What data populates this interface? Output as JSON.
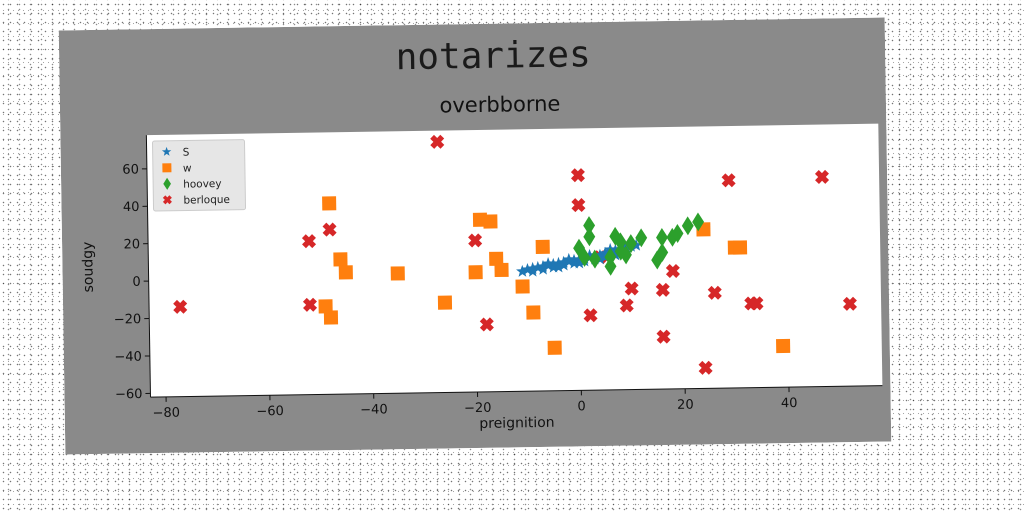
{
  "figure": {
    "suptitle": "notarizes",
    "background": "#8a8a8a"
  },
  "chart_data": {
    "type": "scatter",
    "title": "overbborne",
    "xlabel": "preignition",
    "ylabel": "soudgy",
    "xlim": [
      -83,
      58
    ],
    "ylim": [
      -62,
      78
    ],
    "xticks": [
      -80,
      -60,
      -40,
      -20,
      0,
      20,
      40
    ],
    "yticks": [
      -60,
      -40,
      -20,
      0,
      20,
      40,
      60
    ],
    "grid": false,
    "legend_position": "top-left",
    "series": [
      {
        "name": "S",
        "marker": "star",
        "color": "#1f77b4",
        "points": [
          [
            -11,
            2
          ],
          [
            -10,
            3
          ],
          [
            -9,
            3.5
          ],
          [
            -8,
            4
          ],
          [
            -7,
            4.5
          ],
          [
            -6,
            5
          ],
          [
            -5,
            5.5
          ],
          [
            -4,
            6
          ],
          [
            -3,
            6.5
          ],
          [
            -2,
            7
          ],
          [
            -1,
            7.5
          ],
          [
            0,
            8
          ],
          [
            1,
            8.5
          ],
          [
            2,
            9
          ],
          [
            3,
            9.5
          ],
          [
            4,
            10
          ],
          [
            5,
            11
          ],
          [
            6,
            12
          ],
          [
            7,
            12.5
          ],
          [
            8,
            13
          ],
          [
            9,
            14
          ],
          [
            10,
            14.5
          ],
          [
            11,
            15
          ],
          [
            -9,
            2
          ],
          [
            -7,
            3
          ],
          [
            -5,
            4
          ],
          [
            -3,
            5
          ],
          [
            -1,
            6
          ],
          [
            1,
            7
          ],
          [
            3,
            8
          ],
          [
            5,
            9
          ],
          [
            7,
            10
          ],
          [
            9,
            11
          ],
          [
            -6,
            6
          ],
          [
            -2,
            8
          ],
          [
            2,
            10
          ],
          [
            6,
            13
          ],
          [
            -4,
            4
          ],
          [
            0,
            6
          ],
          [
            4,
            8
          ]
        ]
      },
      {
        "name": "w",
        "marker": "square",
        "color": "#ff7f0e",
        "points": [
          [
            -48,
            40
          ],
          [
            -19,
            30
          ],
          [
            -17,
            29
          ],
          [
            -7,
            15
          ],
          [
            -46,
            10
          ],
          [
            -45,
            3
          ],
          [
            -35,
            2
          ],
          [
            -20,
            2
          ],
          [
            -16,
            9
          ],
          [
            -15,
            3
          ],
          [
            -11,
            -6
          ],
          [
            -9,
            -20
          ],
          [
            -26,
            -14
          ],
          [
            -49,
            -15
          ],
          [
            -48,
            -21
          ],
          [
            -5,
            -39
          ],
          [
            24,
            23
          ],
          [
            30,
            13
          ],
          [
            31,
            13
          ],
          [
            39,
            -40
          ]
        ]
      },
      {
        "name": "hoovey",
        "marker": "diamond",
        "color": "#2ca02c",
        "points": [
          [
            2,
            26
          ],
          [
            2,
            20
          ],
          [
            0,
            14
          ],
          [
            1,
            9
          ],
          [
            3,
            8
          ],
          [
            6,
            9
          ],
          [
            6,
            4
          ],
          [
            7,
            20
          ],
          [
            8,
            17
          ],
          [
            8,
            12
          ],
          [
            9,
            10
          ],
          [
            10,
            16
          ],
          [
            12,
            19
          ],
          [
            15,
            7
          ],
          [
            16,
            11
          ],
          [
            16,
            19
          ],
          [
            18,
            19
          ],
          [
            19,
            21
          ],
          [
            21,
            25
          ],
          [
            23,
            27
          ]
        ]
      },
      {
        "name": "berloque",
        "marker": "x",
        "color": "#d62728",
        "points": [
          [
            -27,
            72
          ],
          [
            0,
            53
          ],
          [
            29,
            49
          ],
          [
            47,
            50
          ],
          [
            0,
            37
          ],
          [
            -52,
            20
          ],
          [
            -48,
            26
          ],
          [
            -20,
            19
          ],
          [
            -77,
            -14
          ],
          [
            -52,
            -14
          ],
          [
            -18,
            -26
          ],
          [
            2,
            -22
          ],
          [
            4,
            9
          ],
          [
            9,
            -17
          ],
          [
            10,
            -8
          ],
          [
            16,
            -9
          ],
          [
            18,
            1
          ],
          [
            16,
            -34
          ],
          [
            24,
            -51
          ],
          [
            26,
            -11
          ],
          [
            33,
            -17
          ],
          [
            34,
            -17
          ],
          [
            52,
            -18
          ]
        ]
      }
    ]
  }
}
